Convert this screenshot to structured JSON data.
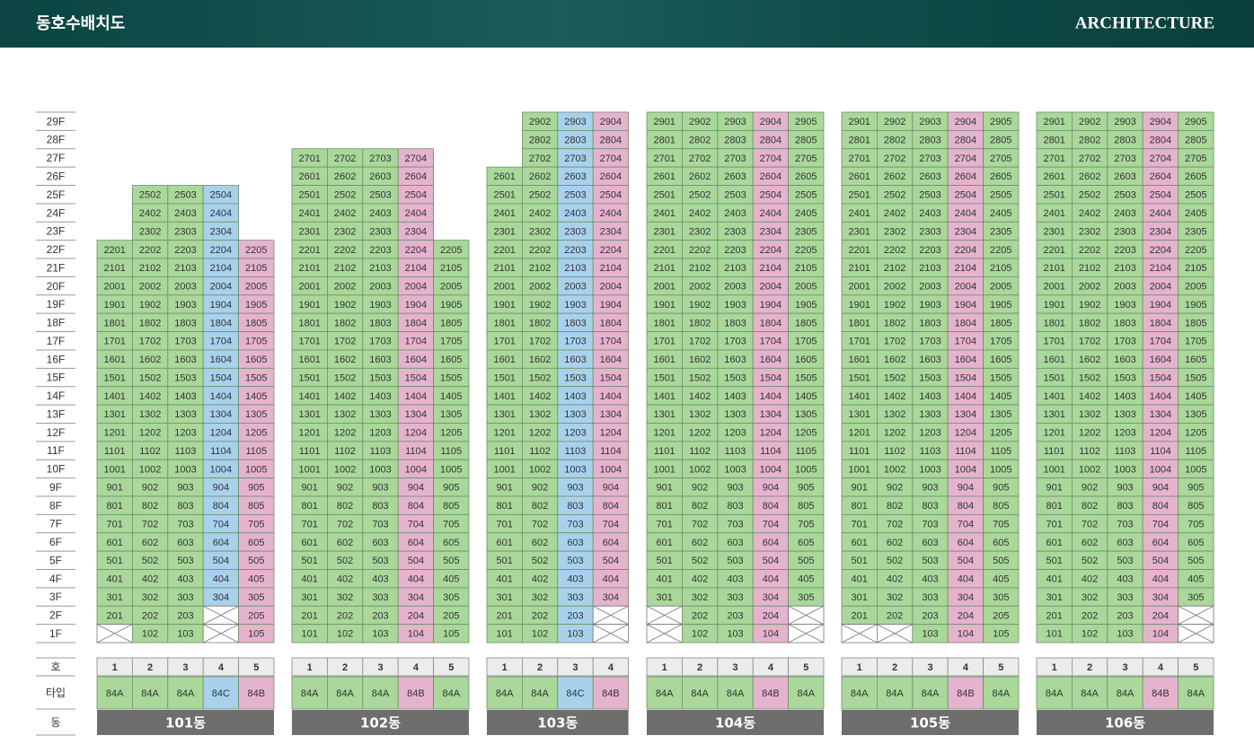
{
  "header": {
    "title": "동호수배치도",
    "brand": "ARCHITECTURE"
  },
  "floors": [
    "29F",
    "28F",
    "27F",
    "26F",
    "25F",
    "24F",
    "23F",
    "22F",
    "21F",
    "20F",
    "19F",
    "18F",
    "17F",
    "16F",
    "15F",
    "14F",
    "13F",
    "12F",
    "11F",
    "10F",
    "9F",
    "8F",
    "7F",
    "6F",
    "5F",
    "4F",
    "3F",
    "2F",
    "1F"
  ],
  "row_labels": {
    "unit": "호",
    "type": "타입",
    "building": "동"
  },
  "type_colors": {
    "84A": "#a9d89a",
    "84B": "#e6b3cf",
    "84C": "#a8d2ec"
  },
  "buildings": [
    {
      "name": "101동",
      "units": [
        "1",
        "2",
        "3",
        "4",
        "5"
      ],
      "types": [
        "84A",
        "84A",
        "84A",
        "84C",
        "84B"
      ],
      "rows": [
        [
          null,
          2502,
          2503,
          2504,
          null
        ],
        [
          null,
          2402,
          2403,
          2404,
          null
        ],
        [
          null,
          2302,
          2303,
          2304,
          null
        ],
        [
          2201,
          2202,
          2203,
          2204,
          2205
        ],
        [
          2101,
          2102,
          2103,
          2104,
          2105
        ],
        [
          2001,
          2002,
          2003,
          2004,
          2005
        ],
        [
          1901,
          1902,
          1903,
          1904,
          1905
        ],
        [
          1801,
          1802,
          1803,
          1804,
          1805
        ],
        [
          1701,
          1702,
          1703,
          1704,
          1705
        ],
        [
          1601,
          1602,
          1603,
          1604,
          1605
        ],
        [
          1501,
          1502,
          1503,
          1504,
          1505
        ],
        [
          1401,
          1402,
          1403,
          1404,
          1405
        ],
        [
          1301,
          1302,
          1303,
          1304,
          1305
        ],
        [
          1201,
          1202,
          1203,
          1204,
          1205
        ],
        [
          1101,
          1102,
          1103,
          1104,
          1105
        ],
        [
          1001,
          1002,
          1003,
          1004,
          1005
        ],
        [
          901,
          902,
          903,
          904,
          905
        ],
        [
          801,
          802,
          803,
          804,
          805
        ],
        [
          701,
          702,
          703,
          704,
          705
        ],
        [
          601,
          602,
          603,
          604,
          605
        ],
        [
          501,
          502,
          503,
          504,
          505
        ],
        [
          401,
          402,
          403,
          404,
          405
        ],
        [
          301,
          302,
          303,
          304,
          305
        ],
        [
          201,
          202,
          203,
          null,
          205
        ],
        [
          null,
          102,
          103,
          null,
          105
        ]
      ]
    },
    {
      "name": "102동",
      "units": [
        "1",
        "2",
        "3",
        "4",
        "5"
      ],
      "types": [
        "84A",
        "84A",
        "84A",
        "84B",
        "84A"
      ],
      "rows": [
        [
          2701,
          2702,
          2703,
          2704,
          null
        ],
        [
          2601,
          2602,
          2603,
          2604,
          null
        ],
        [
          2501,
          2502,
          2503,
          2504,
          null
        ],
        [
          2401,
          2402,
          2403,
          2404,
          null
        ],
        [
          2301,
          2302,
          2303,
          2304,
          null
        ],
        [
          2201,
          2202,
          2203,
          2204,
          2205
        ],
        [
          2101,
          2102,
          2103,
          2104,
          2105
        ],
        [
          2001,
          2002,
          2003,
          2004,
          2005
        ],
        [
          1901,
          1902,
          1903,
          1904,
          1905
        ],
        [
          1801,
          1802,
          1803,
          1804,
          1805
        ],
        [
          1701,
          1702,
          1703,
          1704,
          1705
        ],
        [
          1601,
          1602,
          1603,
          1604,
          1605
        ],
        [
          1501,
          1502,
          1503,
          1504,
          1505
        ],
        [
          1401,
          1402,
          1403,
          1404,
          1405
        ],
        [
          1301,
          1302,
          1303,
          1304,
          1305
        ],
        [
          1201,
          1202,
          1203,
          1204,
          1205
        ],
        [
          1101,
          1102,
          1103,
          1104,
          1105
        ],
        [
          1001,
          1002,
          1003,
          1004,
          1005
        ],
        [
          901,
          902,
          903,
          904,
          905
        ],
        [
          801,
          802,
          803,
          804,
          805
        ],
        [
          701,
          702,
          703,
          704,
          705
        ],
        [
          601,
          602,
          603,
          604,
          605
        ],
        [
          501,
          502,
          503,
          504,
          505
        ],
        [
          401,
          402,
          403,
          404,
          405
        ],
        [
          301,
          302,
          303,
          304,
          305
        ],
        [
          201,
          202,
          203,
          204,
          205
        ],
        [
          101,
          102,
          103,
          104,
          105
        ]
      ]
    },
    {
      "name": "103동",
      "units": [
        "1",
        "2",
        "3",
        "4"
      ],
      "types": [
        "84A",
        "84A",
        "84C",
        "84B"
      ],
      "rows": [
        [
          null,
          2902,
          2903,
          2904
        ],
        [
          null,
          2802,
          2803,
          2804
        ],
        [
          null,
          2702,
          2703,
          2704
        ],
        [
          2601,
          2602,
          2603,
          2604
        ],
        [
          2501,
          2502,
          2503,
          2504
        ],
        [
          2401,
          2402,
          2403,
          2404
        ],
        [
          2301,
          2302,
          2303,
          2304
        ],
        [
          2201,
          2202,
          2203,
          2204
        ],
        [
          2101,
          2102,
          2103,
          2104
        ],
        [
          2001,
          2002,
          2003,
          2004
        ],
        [
          1901,
          1902,
          1903,
          1904
        ],
        [
          1801,
          1802,
          1803,
          1804
        ],
        [
          1701,
          1702,
          1703,
          1704
        ],
        [
          1601,
          1602,
          1603,
          1604
        ],
        [
          1501,
          1502,
          1503,
          1504
        ],
        [
          1401,
          1402,
          1403,
          1404
        ],
        [
          1301,
          1302,
          1303,
          1304
        ],
        [
          1201,
          1202,
          1203,
          1204
        ],
        [
          1101,
          1102,
          1103,
          1104
        ],
        [
          1001,
          1002,
          1003,
          1004
        ],
        [
          901,
          902,
          903,
          904
        ],
        [
          801,
          802,
          803,
          804
        ],
        [
          701,
          702,
          703,
          704
        ],
        [
          601,
          602,
          603,
          604
        ],
        [
          501,
          502,
          503,
          504
        ],
        [
          401,
          402,
          403,
          404
        ],
        [
          301,
          302,
          303,
          304
        ],
        [
          201,
          202,
          203,
          null
        ],
        [
          101,
          102,
          103,
          null
        ]
      ]
    },
    {
      "name": "104동",
      "units": [
        "1",
        "2",
        "3",
        "4",
        "5"
      ],
      "types": [
        "84A",
        "84A",
        "84A",
        "84B",
        "84A"
      ],
      "rows": [
        [
          2901,
          2902,
          2903,
          2904,
          2905
        ],
        [
          2801,
          2802,
          2803,
          2804,
          2805
        ],
        [
          2701,
          2702,
          2703,
          2704,
          2705
        ],
        [
          2601,
          2602,
          2603,
          2604,
          2605
        ],
        [
          2501,
          2502,
          2503,
          2504,
          2505
        ],
        [
          2401,
          2402,
          2403,
          2404,
          2405
        ],
        [
          2301,
          2302,
          2303,
          2304,
          2305
        ],
        [
          2201,
          2202,
          2203,
          2204,
          2205
        ],
        [
          2101,
          2102,
          2103,
          2104,
          2105
        ],
        [
          2001,
          2002,
          2003,
          2004,
          2005
        ],
        [
          1901,
          1902,
          1903,
          1904,
          1905
        ],
        [
          1801,
          1802,
          1803,
          1804,
          1805
        ],
        [
          1701,
          1702,
          1703,
          1704,
          1705
        ],
        [
          1601,
          1602,
          1603,
          1604,
          1605
        ],
        [
          1501,
          1502,
          1503,
          1504,
          1505
        ],
        [
          1401,
          1402,
          1403,
          1404,
          1405
        ],
        [
          1301,
          1302,
          1303,
          1304,
          1305
        ],
        [
          1201,
          1202,
          1203,
          1204,
          1205
        ],
        [
          1101,
          1102,
          1103,
          1104,
          1105
        ],
        [
          1001,
          1002,
          1003,
          1004,
          1005
        ],
        [
          901,
          902,
          903,
          904,
          905
        ],
        [
          801,
          802,
          803,
          804,
          805
        ],
        [
          701,
          702,
          703,
          704,
          705
        ],
        [
          601,
          602,
          603,
          604,
          605
        ],
        [
          501,
          502,
          503,
          504,
          505
        ],
        [
          401,
          402,
          403,
          404,
          405
        ],
        [
          301,
          302,
          303,
          304,
          305
        ],
        [
          null,
          202,
          203,
          204,
          null
        ],
        [
          null,
          102,
          103,
          104,
          null
        ]
      ]
    },
    {
      "name": "105동",
      "units": [
        "1",
        "2",
        "3",
        "4",
        "5"
      ],
      "types": [
        "84A",
        "84A",
        "84A",
        "84B",
        "84A"
      ],
      "rows": [
        [
          2901,
          2902,
          2903,
          2904,
          2905
        ],
        [
          2801,
          2802,
          2803,
          2804,
          2805
        ],
        [
          2701,
          2702,
          2703,
          2704,
          2705
        ],
        [
          2601,
          2602,
          2603,
          2604,
          2605
        ],
        [
          2501,
          2502,
          2503,
          2504,
          2505
        ],
        [
          2401,
          2402,
          2403,
          2404,
          2405
        ],
        [
          2301,
          2302,
          2303,
          2304,
          2305
        ],
        [
          2201,
          2202,
          2203,
          2204,
          2205
        ],
        [
          2101,
          2102,
          2103,
          2104,
          2105
        ],
        [
          2001,
          2002,
          2003,
          2004,
          2005
        ],
        [
          1901,
          1902,
          1903,
          1904,
          1905
        ],
        [
          1801,
          1802,
          1803,
          1804,
          1805
        ],
        [
          1701,
          1702,
          1703,
          1704,
          1705
        ],
        [
          1601,
          1602,
          1603,
          1604,
          1605
        ],
        [
          1501,
          1502,
          1503,
          1504,
          1505
        ],
        [
          1401,
          1402,
          1403,
          1404,
          1405
        ],
        [
          1301,
          1302,
          1303,
          1304,
          1305
        ],
        [
          1201,
          1202,
          1203,
          1204,
          1205
        ],
        [
          1101,
          1102,
          1103,
          1104,
          1105
        ],
        [
          1001,
          1002,
          1003,
          1004,
          1005
        ],
        [
          901,
          902,
          903,
          904,
          905
        ],
        [
          801,
          802,
          803,
          804,
          805
        ],
        [
          701,
          702,
          703,
          704,
          705
        ],
        [
          601,
          602,
          603,
          604,
          605
        ],
        [
          501,
          502,
          503,
          504,
          505
        ],
        [
          401,
          402,
          403,
          404,
          405
        ],
        [
          301,
          302,
          303,
          304,
          305
        ],
        [
          201,
          202,
          203,
          204,
          205
        ],
        [
          null,
          null,
          103,
          104,
          105
        ]
      ]
    },
    {
      "name": "106동",
      "units": [
        "1",
        "2",
        "3",
        "4",
        "5"
      ],
      "types": [
        "84A",
        "84A",
        "84A",
        "84B",
        "84A"
      ],
      "rows": [
        [
          2901,
          2902,
          2903,
          2904,
          2905
        ],
        [
          2801,
          2802,
          2803,
          2804,
          2805
        ],
        [
          2701,
          2702,
          2703,
          2704,
          2705
        ],
        [
          2601,
          2602,
          2603,
          2604,
          2605
        ],
        [
          2501,
          2502,
          2503,
          2504,
          2505
        ],
        [
          2401,
          2402,
          2403,
          2404,
          2405
        ],
        [
          2301,
          2302,
          2303,
          2304,
          2305
        ],
        [
          2201,
          2202,
          2203,
          2204,
          2205
        ],
        [
          2101,
          2102,
          2103,
          2104,
          2105
        ],
        [
          2001,
          2002,
          2003,
          2004,
          2005
        ],
        [
          1901,
          1902,
          1903,
          1904,
          1905
        ],
        [
          1801,
          1802,
          1803,
          1804,
          1805
        ],
        [
          1701,
          1702,
          1703,
          1704,
          1705
        ],
        [
          1601,
          1602,
          1603,
          1604,
          1605
        ],
        [
          1501,
          1502,
          1503,
          1504,
          1505
        ],
        [
          1401,
          1402,
          1403,
          1404,
          1405
        ],
        [
          1301,
          1302,
          1303,
          1304,
          1305
        ],
        [
          1201,
          1202,
          1203,
          1204,
          1205
        ],
        [
          1101,
          1102,
          1103,
          1104,
          1105
        ],
        [
          1001,
          1002,
          1003,
          1004,
          1005
        ],
        [
          901,
          902,
          903,
          904,
          905
        ],
        [
          801,
          802,
          803,
          804,
          805
        ],
        [
          701,
          702,
          703,
          704,
          705
        ],
        [
          601,
          602,
          603,
          604,
          605
        ],
        [
          501,
          502,
          503,
          504,
          505
        ],
        [
          401,
          402,
          403,
          404,
          405
        ],
        [
          301,
          302,
          303,
          304,
          305
        ],
        [
          201,
          202,
          203,
          204,
          null
        ],
        [
          101,
          102,
          103,
          104,
          null
        ]
      ]
    }
  ]
}
